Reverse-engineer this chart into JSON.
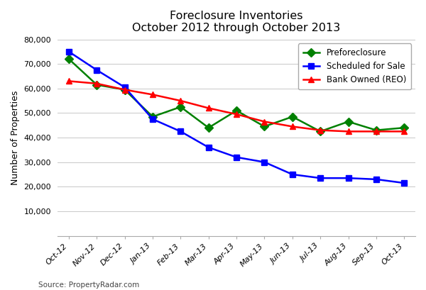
{
  "title_line1": "Foreclosure Inventories",
  "title_line2": "October 2012 through October 2013",
  "ylabel": "Number of Properties",
  "source": "Source: PropertyRadar.com",
  "categories": [
    "Oct-12",
    "Nov-12",
    "Dec-12",
    "Jan-13",
    "Feb-13",
    "Mar-13",
    "Apr-13",
    "May-13",
    "Jun-13",
    "Jul-13",
    "Aug-13",
    "Sep-13",
    "Oct-13"
  ],
  "preforeclosure": [
    72000,
    61500,
    59500,
    48500,
    52500,
    44000,
    51000,
    44500,
    48500,
    42500,
    46500,
    43000,
    44000
  ],
  "scheduled_for_sale": [
    75000,
    67500,
    60500,
    47500,
    42500,
    36000,
    32000,
    30000,
    25000,
    23500,
    23500,
    23000,
    21500
  ],
  "bank_owned_reo": [
    63000,
    62000,
    59500,
    57500,
    55000,
    52000,
    49500,
    46500,
    44500,
    43000,
    42500,
    42500,
    42500
  ],
  "color_preforeclosure": "#008000",
  "color_scheduled": "#0000FF",
  "color_reo": "#FF0000",
  "ylim": [
    0,
    80000
  ],
  "yticks": [
    10000,
    20000,
    30000,
    40000,
    50000,
    60000,
    70000,
    80000
  ],
  "background_color": "#FFFFFF",
  "grid_color": "#C8C8C8",
  "title_fontsize": 11.5,
  "label_fontsize": 9,
  "tick_fontsize": 8,
  "legend_fontsize": 8.5,
  "source_fontsize": 7.5,
  "linewidth": 1.8,
  "markersize": 6
}
